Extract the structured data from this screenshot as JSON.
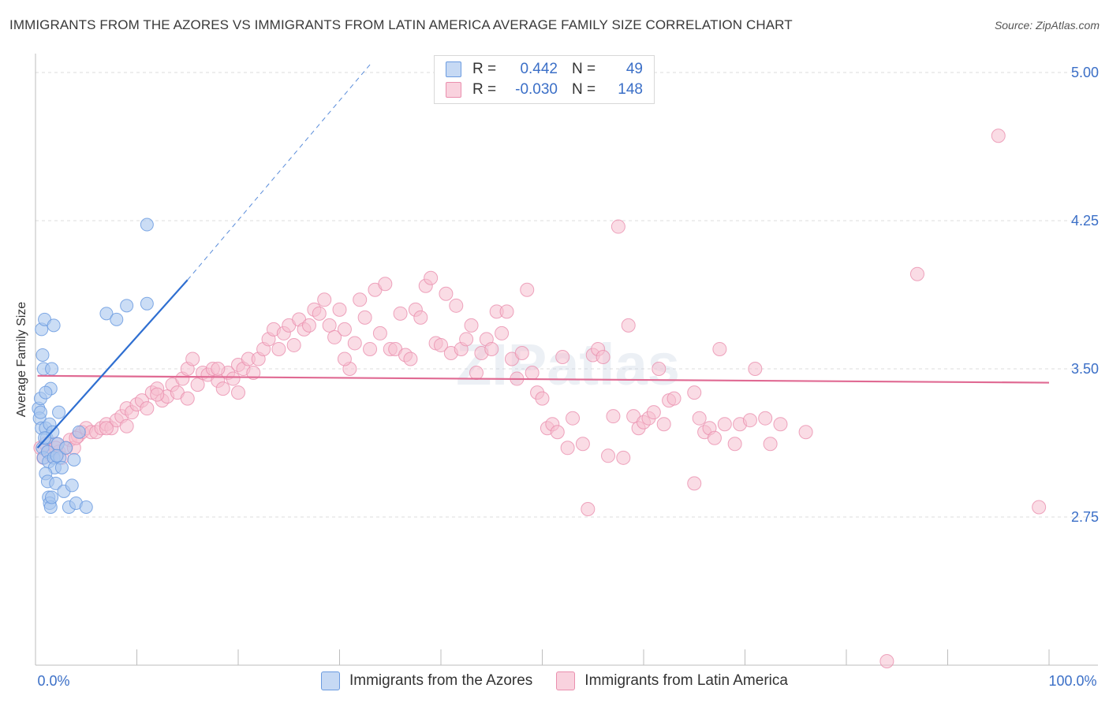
{
  "title": "IMMIGRANTS FROM THE AZORES VS IMMIGRANTS FROM LATIN AMERICA AVERAGE FAMILY SIZE CORRELATION CHART",
  "source": "Source: ZipAtlas.com",
  "watermark": "ZIPatlas",
  "legend": {
    "r_label": "R =",
    "n_label": "N =",
    "rows": [
      {
        "name": "Immigrants from the Azores",
        "r": "0.442",
        "n": "49",
        "fill": "#a9c6ef",
        "stroke": "#6b9be0"
      },
      {
        "name": "Immigrants from Latin America",
        "r": "-0.030",
        "n": "148",
        "fill": "#f6bfd0",
        "stroke": "#ea8fae"
      }
    ]
  },
  "bottom_legend": [
    {
      "label": "Immigrants from the Azores"
    },
    {
      "label": "Immigrants from Latin America"
    }
  ],
  "chart_data": {
    "type": "scatter",
    "title": "IMMIGRANTS FROM THE AZORES VS IMMIGRANTS FROM LATIN AMERICA AVERAGE FAMILY SIZE CORRELATION CHART",
    "xlabel": "",
    "ylabel": "Average Family Size",
    "xlim": [
      0,
      100
    ],
    "ylim": [
      2.0,
      5.08
    ],
    "x_tick_labels": [
      "0.0%",
      "100.0%"
    ],
    "y_ticks": [
      2.75,
      3.5,
      4.25,
      5.0
    ],
    "y_tick_labels": [
      "2.75",
      "3.50",
      "4.25",
      "5.00"
    ],
    "grid": "horizontal dashed",
    "series": [
      {
        "name": "Immigrants from the Azores",
        "color": "#6b9be0",
        "fill": "#a9c6ef",
        "trend": {
          "x0": 0.2,
          "y0": 3.1,
          "x1": 15.0,
          "y1": 3.95,
          "dashed_to_x": 33.0,
          "dashed_to_y": 5.04,
          "color": "#2f6fd1"
        },
        "points": [
          [
            0.3,
            3.3
          ],
          [
            0.4,
            3.25
          ],
          [
            0.5,
            3.35
          ],
          [
            0.6,
            3.2
          ],
          [
            0.7,
            3.1
          ],
          [
            0.8,
            3.05
          ],
          [
            0.6,
            3.7
          ],
          [
            0.7,
            3.57
          ],
          [
            0.8,
            3.5
          ],
          [
            0.9,
            3.75
          ],
          [
            1.0,
            3.2
          ],
          [
            1.1,
            3.15
          ],
          [
            1.2,
            3.08
          ],
          [
            1.3,
            3.03
          ],
          [
            1.4,
            3.22
          ],
          [
            1.5,
            3.4
          ],
          [
            1.6,
            3.5
          ],
          [
            1.7,
            3.18
          ],
          [
            1.8,
            3.05
          ],
          [
            1.9,
            3.0
          ],
          [
            1.0,
            2.97
          ],
          [
            1.2,
            2.93
          ],
          [
            1.3,
            2.85
          ],
          [
            1.4,
            2.82
          ],
          [
            1.5,
            2.8
          ],
          [
            2.0,
            2.92
          ],
          [
            2.2,
            3.12
          ],
          [
            2.3,
            3.28
          ],
          [
            2.4,
            3.05
          ],
          [
            2.6,
            3.0
          ],
          [
            2.8,
            2.88
          ],
          [
            3.0,
            3.1
          ],
          [
            3.3,
            2.8
          ],
          [
            3.6,
            2.91
          ],
          [
            3.8,
            3.04
          ],
          [
            4.0,
            2.82
          ],
          [
            4.3,
            3.18
          ],
          [
            5.0,
            2.8
          ],
          [
            7.0,
            3.78
          ],
          [
            8.0,
            3.75
          ],
          [
            9.0,
            3.82
          ],
          [
            11.0,
            3.83
          ],
          [
            11.0,
            4.23
          ],
          [
            1.0,
            3.38
          ],
          [
            0.5,
            3.28
          ],
          [
            1.8,
            3.72
          ],
          [
            2.1,
            3.06
          ],
          [
            0.9,
            3.15
          ],
          [
            1.6,
            2.85
          ]
        ]
      },
      {
        "name": "Immigrants from Latin America",
        "color": "#ea8fae",
        "fill": "#f6bfd0",
        "trend": {
          "x0": 0.2,
          "y0": 3.465,
          "x1": 100.0,
          "y1": 3.43,
          "color": "#e06a93"
        },
        "points": [
          [
            0.5,
            3.1
          ],
          [
            0.8,
            3.05
          ],
          [
            1.0,
            3.12
          ],
          [
            1.3,
            3.08
          ],
          [
            1.6,
            3.06
          ],
          [
            2.0,
            3.12
          ],
          [
            2.3,
            3.08
          ],
          [
            2.6,
            3.05
          ],
          [
            3.0,
            3.1
          ],
          [
            3.4,
            3.14
          ],
          [
            3.8,
            3.1
          ],
          [
            4.2,
            3.16
          ],
          [
            4.6,
            3.18
          ],
          [
            5.0,
            3.2
          ],
          [
            5.5,
            3.18
          ],
          [
            6.0,
            3.18
          ],
          [
            6.5,
            3.2
          ],
          [
            7.0,
            3.22
          ],
          [
            7.5,
            3.2
          ],
          [
            8.0,
            3.24
          ],
          [
            8.5,
            3.26
          ],
          [
            9.0,
            3.3
          ],
          [
            9.5,
            3.28
          ],
          [
            10.0,
            3.32
          ],
          [
            10.5,
            3.34
          ],
          [
            11.0,
            3.3
          ],
          [
            11.5,
            3.38
          ],
          [
            12.0,
            3.4
          ],
          [
            12.5,
            3.34
          ],
          [
            13.0,
            3.36
          ],
          [
            13.5,
            3.42
          ],
          [
            14.0,
            3.38
          ],
          [
            14.5,
            3.45
          ],
          [
            15.0,
            3.5
          ],
          [
            15.5,
            3.55
          ],
          [
            16.0,
            3.42
          ],
          [
            16.5,
            3.48
          ],
          [
            17.0,
            3.47
          ],
          [
            17.5,
            3.5
          ],
          [
            18.0,
            3.44
          ],
          [
            18.5,
            3.4
          ],
          [
            19.0,
            3.48
          ],
          [
            19.5,
            3.45
          ],
          [
            20.0,
            3.52
          ],
          [
            20.5,
            3.5
          ],
          [
            21.0,
            3.55
          ],
          [
            21.5,
            3.48
          ],
          [
            22.0,
            3.55
          ],
          [
            22.5,
            3.6
          ],
          [
            23.0,
            3.65
          ],
          [
            23.5,
            3.7
          ],
          [
            24.0,
            3.6
          ],
          [
            24.5,
            3.68
          ],
          [
            25.0,
            3.72
          ],
          [
            25.5,
            3.62
          ],
          [
            26.0,
            3.75
          ],
          [
            26.5,
            3.7
          ],
          [
            27.0,
            3.72
          ],
          [
            27.5,
            3.8
          ],
          [
            28.0,
            3.78
          ],
          [
            28.5,
            3.85
          ],
          [
            29.0,
            3.72
          ],
          [
            29.5,
            3.66
          ],
          [
            30.0,
            3.8
          ],
          [
            30.5,
            3.7
          ],
          [
            31.0,
            3.5
          ],
          [
            31.5,
            3.63
          ],
          [
            32.0,
            3.85
          ],
          [
            32.5,
            3.76
          ],
          [
            33.0,
            3.6
          ],
          [
            33.5,
            3.9
          ],
          [
            34.0,
            3.68
          ],
          [
            34.5,
            3.93
          ],
          [
            35.0,
            3.6
          ],
          [
            35.5,
            3.6
          ],
          [
            36.0,
            3.78
          ],
          [
            36.5,
            3.57
          ],
          [
            37.0,
            3.55
          ],
          [
            37.5,
            3.8
          ],
          [
            38.0,
            3.76
          ],
          [
            38.5,
            3.92
          ],
          [
            39.0,
            3.96
          ],
          [
            39.5,
            3.63
          ],
          [
            40.0,
            3.62
          ],
          [
            40.5,
            3.88
          ],
          [
            41.0,
            3.58
          ],
          [
            41.5,
            3.82
          ],
          [
            42.0,
            3.6
          ],
          [
            42.5,
            3.65
          ],
          [
            43.0,
            3.72
          ],
          [
            43.5,
            3.48
          ],
          [
            44.0,
            3.58
          ],
          [
            44.5,
            3.65
          ],
          [
            45.0,
            3.6
          ],
          [
            45.5,
            3.79
          ],
          [
            46.0,
            3.68
          ],
          [
            46.5,
            3.79
          ],
          [
            47.0,
            3.55
          ],
          [
            47.5,
            3.45
          ],
          [
            48.0,
            3.58
          ],
          [
            48.5,
            3.9
          ],
          [
            49.0,
            3.48
          ],
          [
            49.5,
            3.38
          ],
          [
            50.0,
            3.35
          ],
          [
            50.5,
            3.2
          ],
          [
            51.0,
            3.22
          ],
          [
            51.5,
            3.18
          ],
          [
            52.0,
            3.56
          ],
          [
            52.5,
            3.1
          ],
          [
            53.0,
            3.25
          ],
          [
            54.0,
            3.12
          ],
          [
            55.0,
            3.57
          ],
          [
            55.5,
            3.6
          ],
          [
            56.0,
            3.56
          ],
          [
            56.5,
            3.06
          ],
          [
            57.0,
            3.26
          ],
          [
            58.0,
            3.05
          ],
          [
            58.5,
            3.72
          ],
          [
            59.0,
            3.26
          ],
          [
            59.5,
            3.2
          ],
          [
            60.0,
            3.23
          ],
          [
            60.5,
            3.25
          ],
          [
            61.0,
            3.28
          ],
          [
            61.5,
            3.5
          ],
          [
            62.0,
            3.22
          ],
          [
            62.5,
            3.34
          ],
          [
            63.0,
            3.35
          ],
          [
            65.0,
            3.38
          ],
          [
            65.5,
            3.25
          ],
          [
            66.0,
            3.18
          ],
          [
            66.5,
            3.2
          ],
          [
            67.0,
            3.15
          ],
          [
            67.5,
            3.6
          ],
          [
            68.0,
            3.22
          ],
          [
            69.0,
            3.12
          ],
          [
            69.5,
            3.22
          ],
          [
            70.5,
            3.24
          ],
          [
            71.0,
            3.5
          ],
          [
            72.0,
            3.25
          ],
          [
            72.5,
            3.12
          ],
          [
            73.5,
            3.22
          ],
          [
            76.0,
            3.18
          ],
          [
            57.5,
            4.22
          ],
          [
            65.0,
            2.92
          ],
          [
            54.5,
            2.79
          ],
          [
            87.0,
            3.98
          ],
          [
            95.0,
            4.68
          ],
          [
            99.0,
            2.8
          ],
          [
            84.0,
            2.02
          ],
          [
            30.5,
            3.55
          ],
          [
            20.0,
            3.38
          ],
          [
            18.0,
            3.5
          ],
          [
            15.0,
            3.35
          ],
          [
            12.0,
            3.37
          ],
          [
            9.0,
            3.21
          ],
          [
            7.0,
            3.2
          ],
          [
            2.0,
            3.1
          ],
          [
            4.0,
            3.15
          ]
        ]
      }
    ]
  }
}
